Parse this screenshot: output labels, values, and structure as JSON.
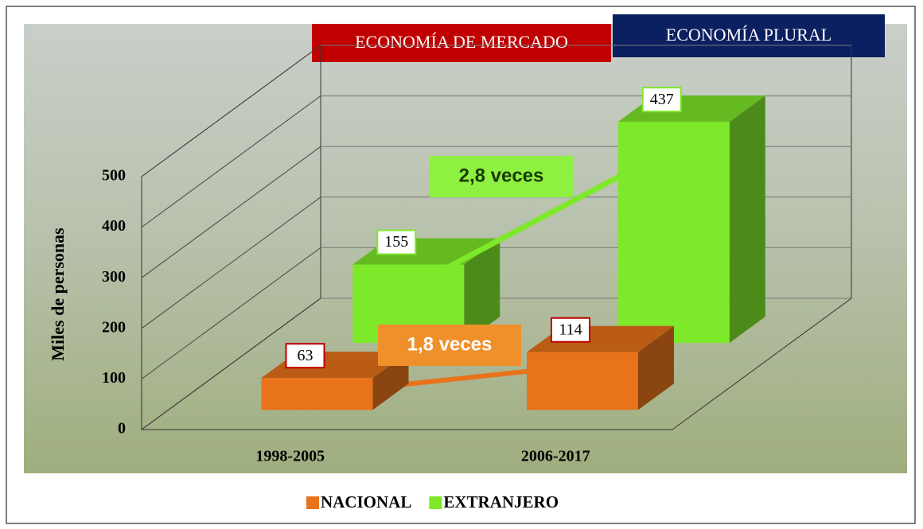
{
  "chart_data": {
    "type": "bar3d",
    "banners": [
      "ECONOMÍA DE MERCADO",
      "ECONOMÍA PLURAL"
    ],
    "y_label": "Miles de personas",
    "categories": [
      "1998-2005",
      "2006-2017"
    ],
    "series": [
      {
        "name": "NACIONAL",
        "color": "#e8731a",
        "values": [
          63,
          114
        ]
      },
      {
        "name": "EXTRANJERO",
        "color": "#7ee82a",
        "values": [
          155,
          437
        ]
      }
    ],
    "annotations": [
      "1,8 veces",
      "2,8 veces"
    ],
    "ylim": [
      0,
      500
    ],
    "yticks": [
      0,
      100,
      200,
      300,
      400,
      500
    ],
    "grid": true,
    "legend": "bottom"
  }
}
